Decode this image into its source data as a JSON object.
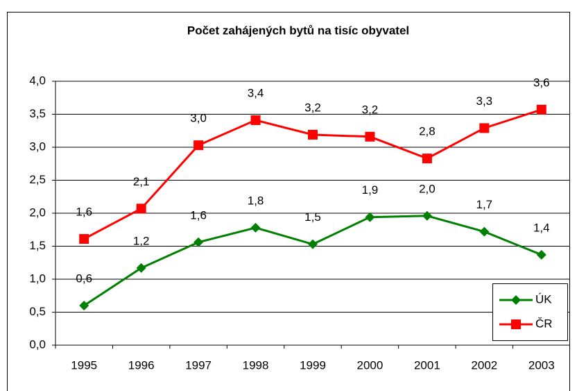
{
  "chart_data": {
    "type": "line",
    "title": "Počet zahájených bytů na tisíc obyvatel",
    "categories": [
      "1995",
      "1996",
      "1997",
      "1998",
      "1999",
      "2000",
      "2001",
      "2002",
      "2003"
    ],
    "series": [
      {
        "name": "ÚK",
        "color": "#008000",
        "marker": "diamond",
        "values": [
          0.6,
          1.17,
          1.56,
          1.78,
          1.53,
          1.94,
          1.96,
          1.72,
          1.37
        ],
        "value_labels": [
          "0,6",
          "1,2",
          "1,6",
          "1,8",
          "1,5",
          "1,9",
          "2,0",
          "1,7",
          "1,4"
        ]
      },
      {
        "name": "ČR",
        "color": "#ff0000",
        "marker": "square",
        "values": [
          1.61,
          2.07,
          3.03,
          3.41,
          3.19,
          3.16,
          2.83,
          3.29,
          3.57
        ],
        "value_labels": [
          "1,6",
          "2,1",
          "3,0",
          "3,4",
          "3,2",
          "3,2",
          "2,8",
          "3,3",
          "3,6"
        ]
      }
    ],
    "ylim": [
      0,
      4
    ],
    "yticks": [
      {
        "value": 0,
        "label": "0,0"
      },
      {
        "value": 0.5,
        "label": "0,5"
      },
      {
        "value": 1,
        "label": "1,0"
      },
      {
        "value": 1.5,
        "label": "1,5"
      },
      {
        "value": 2,
        "label": "2,0"
      },
      {
        "value": 2.5,
        "label": "2,5"
      },
      {
        "value": 3,
        "label": "3,0"
      },
      {
        "value": 3.5,
        "label": "3,5"
      },
      {
        "value": 4,
        "label": "4,0"
      }
    ],
    "grid": true,
    "legend": "right"
  }
}
